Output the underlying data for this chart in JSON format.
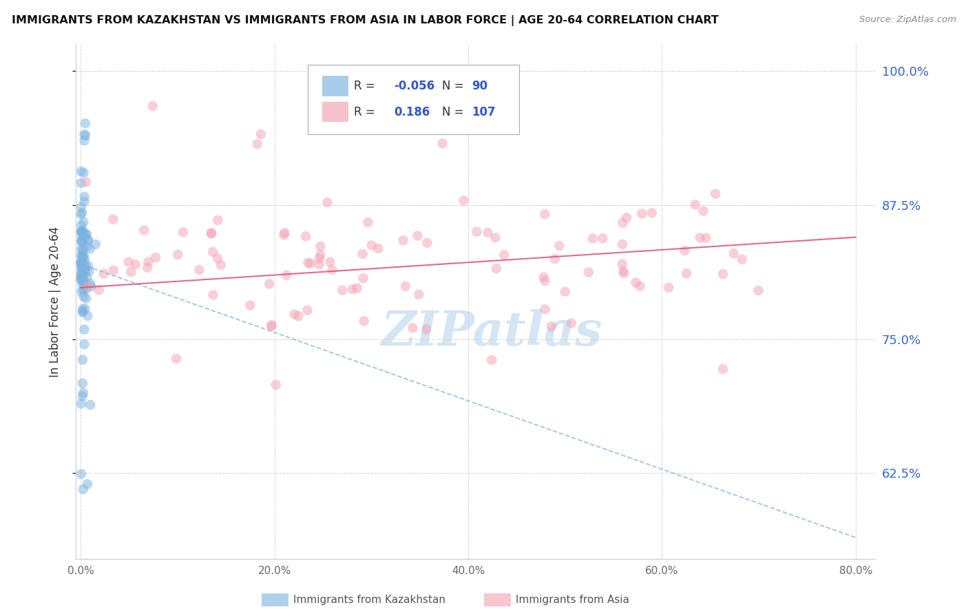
{
  "title": "IMMIGRANTS FROM KAZAKHSTAN VS IMMIGRANTS FROM ASIA IN LABOR FORCE | AGE 20-64 CORRELATION CHART",
  "source": "Source: ZipAtlas.com",
  "ylabel": "In Labor Force | Age 20-64",
  "xlabel_ticks": [
    "0.0%",
    "20.0%",
    "40.0%",
    "60.0%",
    "80.0%"
  ],
  "xlabel_vals": [
    0.0,
    0.2,
    0.4,
    0.6,
    0.8
  ],
  "ylabel_ticks": [
    "62.5%",
    "75.0%",
    "87.5%",
    "100.0%"
  ],
  "ylabel_vals": [
    0.625,
    0.75,
    0.875,
    1.0
  ],
  "xlim": [
    -0.005,
    0.82
  ],
  "ylim": [
    0.545,
    1.025
  ],
  "kaz_R": -0.056,
  "kaz_N": 90,
  "asia_R": 0.186,
  "asia_N": 107,
  "kaz_color": "#7ab3e0",
  "asia_color": "#f4a0b0",
  "kaz_line_color": "#7ab3e0",
  "asia_line_color": "#e05070",
  "watermark": "ZIPatlas",
  "watermark_color": "#b8d4ed",
  "legend_label_kaz": "Immigrants from Kazakhstan",
  "legend_label_asia": "Immigrants from Asia",
  "kaz_trend_x": [
    0.0,
    0.8
  ],
  "kaz_trend_y": [
    0.82,
    0.565
  ],
  "asia_trend_x": [
    0.0,
    0.8
  ],
  "asia_trend_y": [
    0.798,
    0.845
  ]
}
